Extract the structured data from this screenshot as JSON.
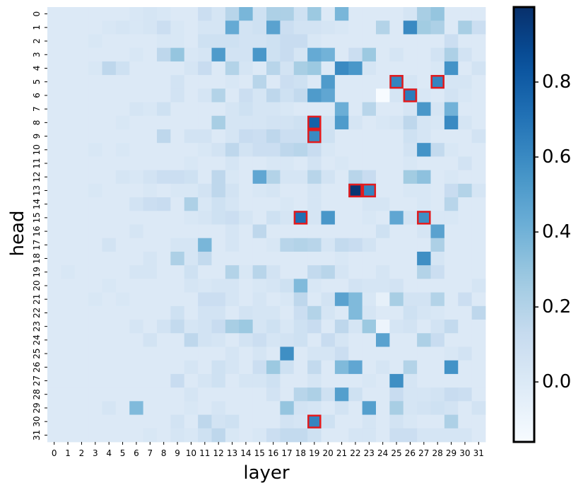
{
  "chart_data": {
    "type": "heatmap",
    "xlabel": "layer",
    "ylabel": "head",
    "x_ticks": [
      "0",
      "1",
      "2",
      "3",
      "4",
      "5",
      "6",
      "7",
      "8",
      "9",
      "10",
      "11",
      "12",
      "13",
      "14",
      "15",
      "16",
      "17",
      "18",
      "19",
      "20",
      "21",
      "22",
      "23",
      "24",
      "25",
      "26",
      "27",
      "28",
      "29",
      "30",
      "31"
    ],
    "y_ticks": [
      "0",
      "1",
      "2",
      "3",
      "4",
      "5",
      "6",
      "7",
      "8",
      "9",
      "10",
      "11",
      "12",
      "13",
      "14",
      "15",
      "16",
      "17",
      "18",
      "19",
      "20",
      "21",
      "22",
      "23",
      "24",
      "25",
      "26",
      "27",
      "28",
      "29",
      "30",
      "31"
    ],
    "colorbar": {
      "min": -0.16,
      "max": 1.0,
      "ticks": [
        0.0,
        0.2,
        0.4,
        0.6,
        0.8
      ],
      "tick_labels": [
        "0.0",
        "0.2",
        "0.4",
        "0.6",
        "0.8"
      ],
      "colormap": "Blues"
    },
    "values": [
      [
        0.0,
        0.0,
        0.0,
        0.0,
        0.0,
        0.0,
        0.02,
        0.04,
        0.02,
        0.0,
        0.0,
        0.1,
        0.04,
        0.18,
        0.38,
        0.08,
        0.22,
        0.22,
        0.08,
        0.28,
        0.0,
        0.38,
        0.0,
        0.0,
        0.0,
        0.0,
        0.04,
        0.24,
        0.3,
        0.0,
        0.0,
        0.0
      ],
      [
        0.0,
        0.0,
        0.0,
        0.0,
        0.02,
        0.04,
        0.02,
        0.04,
        0.1,
        0.02,
        0.0,
        0.04,
        0.04,
        0.44,
        0.06,
        0.08,
        0.48,
        0.1,
        0.06,
        0.06,
        0.04,
        0.02,
        0.0,
        0.0,
        0.2,
        0.0,
        0.6,
        0.26,
        0.22,
        0.0,
        0.24,
        0.1
      ],
      [
        0.0,
        0.0,
        0.0,
        0.02,
        0.0,
        0.0,
        0.0,
        0.0,
        0.02,
        0.02,
        0.0,
        0.08,
        0.08,
        0.08,
        0.06,
        0.06,
        0.08,
        0.12,
        0.12,
        0.02,
        0.0,
        0.0,
        0.0,
        0.0,
        0.0,
        0.0,
        0.0,
        0.0,
        0.0,
        0.1,
        0.0,
        0.0
      ],
      [
        0.0,
        0.0,
        0.0,
        0.0,
        0.0,
        0.0,
        0.02,
        0.0,
        0.16,
        0.3,
        0.02,
        0.04,
        0.52,
        0.06,
        0.06,
        0.54,
        0.08,
        0.12,
        0.04,
        0.44,
        0.4,
        0.0,
        0.1,
        0.28,
        0.0,
        0.04,
        0.0,
        0.0,
        0.06,
        0.22,
        0.06,
        0.0
      ],
      [
        0.0,
        0.0,
        0.0,
        0.02,
        0.16,
        0.08,
        0.0,
        0.0,
        0.0,
        0.0,
        0.04,
        0.12,
        0.0,
        0.2,
        0.04,
        0.0,
        0.18,
        0.06,
        0.24,
        0.28,
        0.0,
        0.6,
        0.54,
        0.04,
        0.0,
        0.0,
        0.0,
        0.0,
        0.02,
        0.56,
        0.0,
        0.06
      ],
      [
        0.0,
        0.0,
        0.0,
        0.0,
        0.0,
        0.0,
        0.0,
        0.0,
        0.0,
        0.06,
        0.0,
        0.0,
        0.0,
        0.02,
        0.0,
        0.18,
        0.0,
        0.1,
        0.08,
        0.0,
        0.52,
        0.0,
        0.0,
        0.0,
        0.0,
        0.62,
        0.04,
        0.0,
        0.62,
        0.04,
        0.04,
        0.0
      ],
      [
        0.0,
        0.0,
        0.0,
        0.0,
        0.0,
        0.0,
        0.0,
        0.0,
        0.0,
        0.06,
        0.0,
        0.04,
        0.2,
        0.0,
        0.1,
        0.04,
        0.16,
        0.08,
        0.14,
        0.52,
        0.46,
        0.0,
        0.0,
        0.0,
        -0.16,
        0.04,
        0.66,
        0.02,
        0.0,
        0.06,
        0.02,
        0.0
      ],
      [
        0.0,
        0.0,
        0.0,
        0.0,
        0.0,
        0.0,
        0.04,
        0.02,
        0.08,
        0.0,
        0.0,
        0.0,
        0.0,
        0.04,
        0.08,
        0.04,
        0.04,
        0.02,
        0.0,
        0.0,
        0.0,
        0.42,
        0.0,
        0.18,
        0.0,
        0.0,
        0.04,
        0.54,
        0.04,
        0.4,
        0.0,
        0.0
      ],
      [
        0.0,
        0.0,
        0.0,
        0.0,
        0.0,
        0.02,
        0.0,
        0.0,
        0.0,
        0.0,
        0.0,
        0.0,
        0.24,
        0.04,
        0.04,
        0.04,
        0.06,
        0.06,
        0.08,
        0.78,
        0.06,
        0.52,
        0.04,
        0.0,
        0.02,
        0.04,
        0.16,
        0.04,
        0.02,
        0.6,
        0.04,
        0.0
      ],
      [
        0.0,
        0.0,
        0.0,
        0.0,
        0.0,
        0.0,
        0.0,
        0.0,
        0.16,
        0.0,
        0.06,
        0.06,
        0.0,
        0.04,
        0.12,
        0.1,
        0.16,
        0.1,
        0.1,
        0.6,
        0.08,
        0.0,
        0.0,
        0.0,
        0.0,
        0.0,
        0.08,
        0.04,
        0.0,
        0.0,
        0.0,
        0.06
      ],
      [
        0.0,
        0.0,
        0.0,
        0.02,
        0.0,
        0.02,
        0.0,
        0.0,
        0.0,
        0.0,
        0.0,
        0.02,
        0.06,
        0.16,
        0.06,
        0.1,
        0.1,
        0.16,
        0.18,
        0.12,
        0.02,
        0.0,
        0.0,
        0.0,
        0.0,
        0.0,
        0.06,
        0.56,
        0.14,
        0.02,
        0.0,
        0.0
      ],
      [
        0.0,
        0.0,
        0.0,
        0.0,
        0.0,
        0.0,
        0.0,
        0.0,
        0.0,
        0.0,
        0.02,
        0.0,
        0.0,
        0.04,
        0.0,
        0.0,
        0.02,
        0.02,
        0.0,
        0.06,
        0.0,
        0.02,
        0.0,
        0.0,
        0.0,
        0.0,
        0.02,
        0.0,
        0.0,
        0.0,
        0.06,
        0.0
      ],
      [
        0.0,
        0.0,
        0.0,
        0.0,
        0.0,
        0.04,
        0.02,
        0.06,
        0.1,
        0.1,
        0.08,
        0.0,
        0.16,
        0.02,
        0.0,
        0.46,
        0.2,
        0.04,
        0.04,
        0.18,
        0.06,
        0.0,
        0.18,
        0.12,
        0.0,
        0.0,
        0.26,
        0.32,
        0.0,
        0.02,
        0.0,
        0.0
      ],
      [
        0.0,
        0.0,
        0.0,
        0.02,
        0.0,
        0.0,
        0.0,
        0.02,
        0.0,
        0.02,
        0.02,
        0.06,
        0.16,
        0.06,
        0.0,
        0.02,
        0.04,
        0.0,
        0.0,
        0.04,
        0.0,
        0.0,
        0.98,
        0.62,
        0.0,
        0.0,
        0.02,
        0.02,
        0.0,
        0.12,
        0.2,
        0.04
      ],
      [
        0.0,
        0.0,
        0.0,
        0.0,
        0.0,
        0.0,
        0.06,
        0.1,
        0.12,
        0.0,
        0.22,
        0.02,
        0.08,
        0.04,
        0.0,
        0.0,
        0.0,
        0.02,
        0.0,
        0.04,
        0.0,
        0.0,
        0.0,
        0.04,
        0.04,
        0.0,
        0.0,
        0.02,
        0.0,
        0.18,
        0.0,
        0.0
      ],
      [
        0.0,
        0.0,
        0.0,
        0.0,
        0.0,
        0.0,
        0.0,
        0.0,
        0.0,
        0.0,
        0.02,
        0.04,
        0.08,
        0.1,
        0.04,
        0.0,
        0.08,
        0.04,
        0.72,
        0.04,
        0.54,
        0.0,
        0.0,
        0.02,
        0.0,
        0.46,
        0.06,
        0.58,
        0.02,
        0.02,
        0.0,
        0.0
      ],
      [
        0.0,
        0.0,
        0.0,
        0.0,
        0.0,
        0.0,
        0.04,
        0.0,
        0.0,
        0.0,
        0.0,
        0.0,
        0.0,
        0.04,
        0.0,
        0.16,
        0.0,
        0.0,
        0.0,
        0.0,
        0.0,
        0.0,
        0.0,
        0.0,
        0.08,
        0.0,
        0.0,
        0.04,
        0.48,
        0.0,
        0.0,
        0.0
      ],
      [
        0.0,
        0.0,
        0.0,
        0.0,
        0.06,
        0.0,
        0.0,
        0.0,
        0.0,
        0.04,
        0.04,
        0.38,
        0.0,
        0.04,
        0.0,
        0.0,
        0.02,
        0.18,
        0.2,
        0.18,
        0.04,
        0.14,
        0.12,
        0.06,
        0.0,
        0.0,
        0.0,
        0.0,
        0.22,
        0.0,
        0.0,
        0.0
      ],
      [
        0.0,
        0.0,
        0.0,
        0.0,
        0.0,
        0.0,
        0.0,
        0.04,
        0.0,
        0.22,
        0.04,
        0.14,
        0.0,
        0.0,
        0.0,
        0.0,
        0.0,
        0.0,
        0.0,
        0.0,
        0.0,
        0.02,
        0.0,
        0.0,
        0.0,
        0.0,
        0.0,
        0.58,
        0.04,
        0.0,
        0.0,
        0.0
      ],
      [
        0.0,
        0.02,
        0.0,
        0.0,
        0.0,
        0.0,
        0.04,
        0.04,
        0.0,
        0.0,
        0.08,
        0.0,
        0.0,
        0.2,
        0.02,
        0.18,
        0.06,
        0.0,
        0.0,
        0.14,
        0.18,
        0.04,
        0.0,
        0.0,
        0.04,
        0.0,
        0.0,
        0.2,
        0.1,
        0.0,
        0.0,
        0.0
      ],
      [
        0.0,
        0.0,
        0.0,
        0.0,
        0.02,
        0.0,
        0.0,
        0.0,
        0.0,
        0.0,
        0.04,
        0.02,
        0.04,
        0.04,
        0.0,
        0.02,
        0.04,
        0.08,
        0.36,
        0.02,
        0.0,
        0.0,
        0.06,
        0.04,
        0.04,
        0.06,
        0.0,
        0.0,
        0.0,
        0.0,
        0.0,
        0.04
      ],
      [
        0.0,
        0.0,
        0.0,
        0.02,
        0.0,
        0.02,
        0.0,
        0.0,
        0.0,
        0.0,
        0.0,
        0.1,
        0.1,
        0.04,
        0.0,
        0.04,
        0.0,
        0.02,
        0.16,
        0.0,
        0.06,
        0.48,
        0.36,
        0.02,
        -0.06,
        0.24,
        0.06,
        0.06,
        0.2,
        0.0,
        0.1,
        0.0
      ],
      [
        0.0,
        0.0,
        0.0,
        0.0,
        0.0,
        0.0,
        0.0,
        0.0,
        0.0,
        0.08,
        0.0,
        0.06,
        0.06,
        0.0,
        0.06,
        0.04,
        0.04,
        0.0,
        0.1,
        0.2,
        0.04,
        0.0,
        0.36,
        0.04,
        0.0,
        0.0,
        0.08,
        0.04,
        0.02,
        0.0,
        0.0,
        0.16
      ],
      [
        0.0,
        0.0,
        0.0,
        0.0,
        0.0,
        0.0,
        0.04,
        0.0,
        0.06,
        0.14,
        0.04,
        0.06,
        0.12,
        0.24,
        0.28,
        0.04,
        0.08,
        0.02,
        0.08,
        0.12,
        0.0,
        0.16,
        0.04,
        0.28,
        -0.1,
        0.04,
        0.06,
        0.0,
        0.06,
        0.14,
        0.0,
        0.0
      ],
      [
        0.0,
        0.0,
        0.0,
        0.0,
        0.0,
        0.0,
        0.0,
        0.06,
        0.0,
        0.0,
        0.16,
        0.06,
        0.04,
        0.0,
        0.06,
        0.1,
        0.04,
        0.06,
        0.08,
        0.0,
        0.12,
        0.04,
        0.0,
        0.0,
        0.48,
        0.0,
        0.0,
        0.22,
        0.12,
        0.0,
        0.0,
        0.0
      ],
      [
        0.0,
        0.0,
        0.0,
        0.0,
        0.0,
        0.0,
        0.0,
        0.0,
        0.0,
        0.0,
        0.0,
        0.0,
        0.0,
        0.04,
        0.0,
        0.04,
        0.0,
        0.58,
        0.0,
        0.04,
        0.04,
        0.1,
        0.0,
        0.0,
        0.0,
        0.0,
        0.0,
        0.0,
        0.0,
        0.02,
        0.06,
        0.0
      ],
      [
        0.0,
        0.0,
        0.0,
        0.0,
        0.0,
        0.0,
        0.0,
        0.0,
        0.0,
        0.0,
        0.04,
        0.0,
        0.08,
        0.04,
        0.0,
        0.1,
        0.28,
        0.08,
        0.0,
        0.14,
        0.0,
        0.36,
        0.46,
        0.0,
        0.04,
        0.0,
        0.2,
        0.0,
        0.0,
        0.56,
        0.0,
        0.0
      ],
      [
        0.0,
        0.0,
        0.0,
        0.0,
        0.0,
        0.0,
        0.0,
        0.0,
        0.0,
        0.12,
        0.0,
        0.04,
        0.08,
        0.0,
        0.04,
        0.04,
        0.08,
        0.0,
        0.0,
        0.04,
        0.0,
        0.0,
        0.0,
        0.02,
        0.0,
        0.58,
        0.04,
        0.0,
        0.0,
        0.0,
        0.0,
        0.0
      ],
      [
        0.0,
        0.0,
        0.0,
        0.0,
        0.0,
        0.0,
        0.0,
        0.0,
        0.0,
        0.0,
        0.04,
        0.0,
        0.0,
        0.0,
        0.0,
        0.0,
        0.06,
        0.0,
        0.18,
        0.22,
        0.08,
        0.5,
        0.08,
        0.0,
        0.0,
        0.12,
        0.04,
        0.04,
        0.06,
        0.12,
        0.1,
        0.0
      ],
      [
        0.0,
        0.0,
        0.0,
        0.0,
        0.04,
        0.0,
        0.36,
        0.0,
        0.0,
        0.0,
        0.02,
        0.0,
        0.04,
        0.0,
        0.0,
        0.0,
        0.0,
        0.3,
        0.06,
        0.04,
        0.0,
        0.06,
        0.0,
        0.5,
        0.0,
        0.24,
        0.04,
        0.06,
        0.08,
        0.06,
        0.0,
        0.06
      ],
      [
        0.0,
        0.0,
        0.0,
        0.0,
        0.0,
        0.0,
        0.0,
        0.0,
        0.0,
        0.06,
        0.0,
        0.16,
        0.06,
        0.08,
        0.0,
        0.0,
        0.0,
        0.06,
        0.04,
        0.62,
        0.08,
        0.0,
        0.0,
        0.04,
        0.0,
        0.06,
        0.02,
        0.0,
        0.0,
        0.22,
        0.0,
        0.0
      ],
      [
        0.0,
        0.0,
        0.0,
        0.0,
        0.0,
        0.0,
        0.0,
        0.02,
        0.0,
        0.04,
        0.02,
        0.08,
        0.16,
        0.02,
        0.0,
        0.02,
        0.1,
        0.14,
        0.14,
        0.08,
        0.0,
        0.0,
        0.04,
        0.04,
        0.0,
        0.1,
        0.1,
        0.04,
        0.04,
        0.04,
        0.04,
        0.0
      ]
    ],
    "highlighted_cells": [
      {
        "head": 5,
        "layer": 25
      },
      {
        "head": 5,
        "layer": 28
      },
      {
        "head": 6,
        "layer": 26
      },
      {
        "head": 8,
        "layer": 19
      },
      {
        "head": 9,
        "layer": 19
      },
      {
        "head": 13,
        "layer": 22
      },
      {
        "head": 13,
        "layer": 23
      },
      {
        "head": 15,
        "layer": 18
      },
      {
        "head": 15,
        "layer": 27
      },
      {
        "head": 30,
        "layer": 19
      }
    ],
    "highlight_color": "#e41a1c",
    "grid": false,
    "legend": "none"
  }
}
